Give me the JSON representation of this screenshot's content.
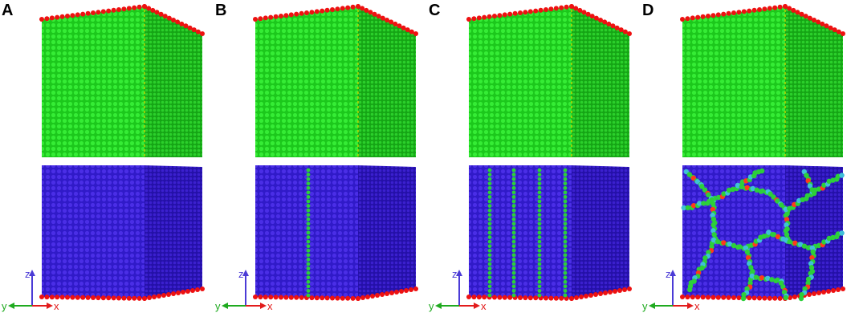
{
  "panels": [
    {
      "label": "A",
      "gb": "none"
    },
    {
      "label": "B",
      "gb": "single"
    },
    {
      "label": "C",
      "gb": "multi"
    },
    {
      "label": "D",
      "gb": "poly"
    }
  ],
  "axes": {
    "z": "z",
    "y": "y",
    "x": "x"
  },
  "colors": {
    "top_front": "#22dd22",
    "top_side": "#18b818",
    "top_edge": "#ee1111",
    "bottom_front": "#3a1fd6",
    "bottom_side": "#2a12b0",
    "boundary": "#2ccf3a",
    "boundary_alt": "#3fc0d8",
    "boundary_hot": "#ff3a1a",
    "axis_z": "#4b3bd6",
    "axis_y": "#1faa1f",
    "axis_x": "#e21b1b"
  }
}
